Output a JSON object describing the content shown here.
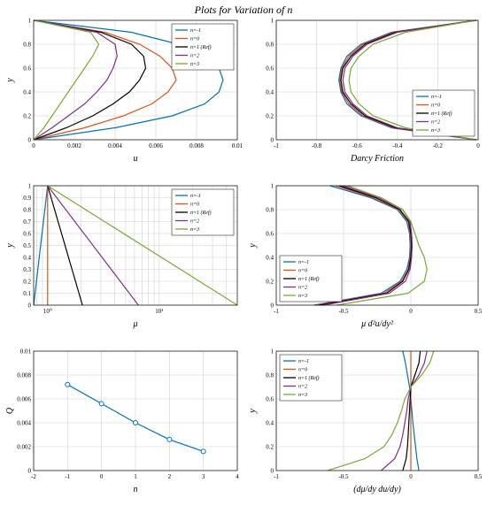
{
  "figure": {
    "title": "Plots for Variation of n"
  },
  "legend_entries": [
    "n=-1",
    "n=0",
    "n=1 (Ref)",
    "n=2",
    "n=3"
  ],
  "colors": [
    "#0072BD",
    "#D95319",
    "#000000",
    "#7E2F8E",
    "#77AC30"
  ],
  "chart_data": [
    {
      "id": "u",
      "type": "line",
      "xlabel": "u",
      "ylabel": "y",
      "xlim": [
        0,
        0.01
      ],
      "ylim": [
        0,
        1
      ],
      "xticks": [
        0,
        0.002,
        0.004,
        0.006,
        0.008,
        0.01
      ],
      "xticklabels": [
        "0",
        "0.002",
        "0.004",
        "0.006",
        "0.008",
        "0.01"
      ],
      "yticks": [
        0,
        0.2,
        0.4,
        0.6,
        0.8,
        1
      ],
      "yticklabels": [
        "0",
        "0.2",
        "0.4",
        "0.6",
        "0.8",
        "1"
      ],
      "grid": true,
      "legend": "top-right",
      "series": [
        {
          "name": "n=-1",
          "x": [
            0,
            0.004,
            0.0068,
            0.0084,
            0.0091,
            0.0093,
            0.0091,
            0.0084,
            0.0071,
            0.0048,
            0
          ],
          "y": [
            0,
            0.1,
            0.2,
            0.3,
            0.4,
            0.5,
            0.6,
            0.7,
            0.8,
            0.9,
            1
          ]
        },
        {
          "name": "n=0",
          "x": [
            0,
            0.0025,
            0.0044,
            0.0058,
            0.0066,
            0.007,
            0.0068,
            0.0062,
            0.0052,
            0.0035,
            0
          ],
          "y": [
            0,
            0.1,
            0.2,
            0.3,
            0.4,
            0.5,
            0.6,
            0.7,
            0.8,
            0.9,
            1
          ]
        },
        {
          "name": "n=1 (Ref)",
          "x": [
            0,
            0.0016,
            0.0029,
            0.0039,
            0.0047,
            0.0052,
            0.0055,
            0.0054,
            0.0048,
            0.0033,
            0
          ],
          "y": [
            0,
            0.1,
            0.2,
            0.3,
            0.4,
            0.5,
            0.6,
            0.7,
            0.8,
            0.9,
            1
          ]
        },
        {
          "name": "n=2",
          "x": [
            0,
            0.0009,
            0.0017,
            0.0025,
            0.0031,
            0.0036,
            0.0039,
            0.0041,
            0.004,
            0.0031,
            0
          ],
          "y": [
            0,
            0.1,
            0.2,
            0.3,
            0.4,
            0.5,
            0.6,
            0.7,
            0.8,
            0.9,
            1
          ]
        },
        {
          "name": "n=3",
          "x": [
            0,
            0.0005,
            0.0009,
            0.0013,
            0.0017,
            0.0021,
            0.0025,
            0.0029,
            0.0032,
            0.0028,
            0
          ],
          "y": [
            0,
            0.1,
            0.2,
            0.3,
            0.4,
            0.5,
            0.6,
            0.7,
            0.8,
            0.9,
            1
          ]
        }
      ]
    },
    {
      "id": "darcy",
      "type": "line",
      "xlabel": "Darcy Friction",
      "ylabel": "",
      "xlim": [
        -1,
        0
      ],
      "ylim": [
        0,
        1
      ],
      "xticks": [
        -1,
        -0.8,
        -0.6,
        -0.4,
        -0.2,
        0
      ],
      "xticklabels": [
        "-1",
        "-0.8",
        "-0.6",
        "-0.4",
        "-0.2",
        "0"
      ],
      "yticks": [
        0,
        0.2,
        0.4,
        0.6,
        0.8,
        1
      ],
      "yticklabels": [
        "0",
        "0.2",
        "0.4",
        "0.6",
        "0.8",
        "1"
      ],
      "grid": true,
      "legend": "bottom-right",
      "series": [
        {
          "name": "n=-1",
          "x": [
            -0.01,
            -0.43,
            -0.58,
            -0.65,
            -0.68,
            -0.69,
            -0.68,
            -0.65,
            -0.58,
            -0.43,
            -0.01
          ],
          "y": [
            0,
            0.1,
            0.2,
            0.3,
            0.4,
            0.5,
            0.6,
            0.7,
            0.8,
            0.9,
            1
          ]
        },
        {
          "name": "n=0",
          "x": [
            -0.01,
            -0.42,
            -0.57,
            -0.64,
            -0.675,
            -0.685,
            -0.675,
            -0.64,
            -0.57,
            -0.42,
            -0.01
          ],
          "y": [
            0,
            0.1,
            0.2,
            0.3,
            0.4,
            0.5,
            0.6,
            0.7,
            0.8,
            0.9,
            1
          ]
        },
        {
          "name": "n=1 (Ref)",
          "x": [
            -0.01,
            -0.41,
            -0.56,
            -0.63,
            -0.67,
            -0.68,
            -0.67,
            -0.63,
            -0.56,
            -0.41,
            -0.01
          ],
          "y": [
            0,
            0.1,
            0.2,
            0.3,
            0.4,
            0.5,
            0.6,
            0.7,
            0.8,
            0.9,
            1
          ]
        },
        {
          "name": "n=2",
          "x": [
            -0.01,
            -0.4,
            -0.55,
            -0.62,
            -0.66,
            -0.67,
            -0.66,
            -0.62,
            -0.55,
            -0.4,
            -0.01
          ],
          "y": [
            0,
            0.1,
            0.2,
            0.3,
            0.4,
            0.5,
            0.6,
            0.7,
            0.8,
            0.9,
            1
          ]
        },
        {
          "name": "n=3",
          "x": [
            -0.01,
            -0.36,
            -0.52,
            -0.59,
            -0.63,
            -0.64,
            -0.63,
            -0.59,
            -0.52,
            -0.36,
            -0.01
          ],
          "y": [
            0,
            0.1,
            0.2,
            0.3,
            0.4,
            0.5,
            0.6,
            0.7,
            0.8,
            0.9,
            1
          ]
        }
      ]
    },
    {
      "id": "mu",
      "type": "line",
      "xlabel": "μ",
      "ylabel": "y",
      "xscale": "log",
      "xlim": [
        0.75,
        50
      ],
      "ylim": [
        0,
        1
      ],
      "xticks": [
        1,
        10
      ],
      "xticklabels": [
        "10⁰",
        "10¹"
      ],
      "yticks": [
        0,
        0.1,
        0.2,
        0.3,
        0.4,
        0.5,
        0.6,
        0.7,
        0.8,
        0.9,
        1
      ],
      "yticklabels": [
        "0",
        "0.1",
        "0.2",
        "0.3",
        "0.4",
        "0.5",
        "0.6",
        "0.7",
        "0.8",
        "0.9",
        "1"
      ],
      "grid": true,
      "legend": "top-right",
      "series": [
        {
          "name": "n=-1",
          "x": [
            1.0,
            0.7
          ],
          "y": [
            1,
            0
          ]
        },
        {
          "name": "n=0",
          "x": [
            1.0,
            1.0
          ],
          "y": [
            1,
            0
          ]
        },
        {
          "name": "n=1 (Ref)",
          "x": [
            1.0,
            2.05
          ],
          "y": [
            1,
            0
          ]
        },
        {
          "name": "n=2",
          "x": [
            1.0,
            6.5
          ],
          "y": [
            1,
            0
          ]
        },
        {
          "name": "n=3",
          "x": [
            1.0,
            50
          ],
          "y": [
            1,
            0
          ]
        }
      ]
    },
    {
      "id": "stress",
      "type": "line",
      "xlabel": "μ d²u/dy²",
      "ylabel": "y",
      "xlim": [
        -1,
        0.5
      ],
      "ylim": [
        0,
        1
      ],
      "xticks": [
        -1,
        -0.5,
        0,
        0.5
      ],
      "xticklabels": [
        "-1",
        "-0.5",
        "0",
        "0.5"
      ],
      "yticks": [
        0,
        0.2,
        0.4,
        0.6,
        0.8,
        1
      ],
      "yticklabels": [
        "0",
        "0.2",
        "0.4",
        "0.6",
        "0.8",
        "1"
      ],
      "grid": true,
      "legend": "bottom-left",
      "series": [
        {
          "name": "n=-1",
          "x": [
            -0.72,
            -0.22,
            -0.08,
            -0.03,
            -0.01,
            -0.005,
            -0.01,
            -0.03,
            -0.1,
            -0.3,
            -0.6
          ],
          "y": [
            0,
            0.1,
            0.2,
            0.3,
            0.4,
            0.5,
            0.6,
            0.7,
            0.8,
            0.9,
            1
          ]
        },
        {
          "name": "n=0",
          "x": [
            -0.7,
            -0.2,
            -0.07,
            -0.02,
            -0.005,
            0,
            -0.005,
            -0.02,
            -0.09,
            -0.28,
            -0.56
          ],
          "y": [
            0,
            0.1,
            0.2,
            0.3,
            0.4,
            0.5,
            0.6,
            0.7,
            0.8,
            0.9,
            1
          ]
        },
        {
          "name": "n=1 (Ref)",
          "x": [
            -0.68,
            -0.18,
            -0.06,
            -0.015,
            0,
            0.005,
            0,
            -0.015,
            -0.08,
            -0.26,
            -0.53
          ],
          "y": [
            0,
            0.1,
            0.2,
            0.3,
            0.4,
            0.5,
            0.6,
            0.7,
            0.8,
            0.9,
            1
          ]
        },
        {
          "name": "n=2",
          "x": [
            -0.65,
            -0.16,
            -0.04,
            -0.005,
            0.005,
            0.01,
            0.005,
            -0.005,
            -0.06,
            -0.24,
            -0.5
          ],
          "y": [
            0,
            0.1,
            0.2,
            0.3,
            0.4,
            0.5,
            0.6,
            0.7,
            0.8,
            0.9,
            1
          ]
        },
        {
          "name": "n=3",
          "x": [
            -0.55,
            -0.02,
            0.1,
            0.12,
            0.1,
            0.06,
            0.03,
            0,
            -0.06,
            -0.22,
            -0.47
          ],
          "y": [
            0,
            0.1,
            0.2,
            0.3,
            0.4,
            0.5,
            0.6,
            0.7,
            0.8,
            0.9,
            1
          ]
        }
      ]
    },
    {
      "id": "Q",
      "type": "line",
      "xlabel": "n",
      "ylabel": "Q",
      "xlim": [
        -2,
        4
      ],
      "ylim": [
        0,
        0.01
      ],
      "xticks": [
        -2,
        -1,
        0,
        1,
        2,
        3,
        4
      ],
      "xticklabels": [
        "-2",
        "-1",
        "0",
        "1",
        "2",
        "3",
        "4"
      ],
      "yticks": [
        0,
        0.002,
        0.004,
        0.006,
        0.008,
        0.01
      ],
      "yticklabels": [
        "0",
        "0.002",
        "0.004",
        "0.006",
        "0.008",
        "0.01"
      ],
      "grid": true,
      "series": [
        {
          "name": "",
          "x": [
            -1,
            0,
            1,
            2,
            3
          ],
          "y": [
            0.0072,
            0.0056,
            0.004,
            0.0026,
            0.0016
          ],
          "markers": true,
          "color": "#0072BD"
        }
      ]
    },
    {
      "id": "dmu",
      "type": "line",
      "xlabel": "(dμ/dy du/dy)",
      "ylabel": "y",
      "xlim": [
        -1,
        0.5
      ],
      "ylim": [
        0,
        1
      ],
      "xticks": [
        -1,
        -0.5,
        0,
        0.5
      ],
      "xticklabels": [
        "-1",
        "-0.5",
        "0",
        "0.5"
      ],
      "yticks": [
        0,
        0.2,
        0.4,
        0.6,
        0.8,
        1
      ],
      "yticklabels": [
        "0",
        "0.2",
        "0.4",
        "0.6",
        "0.8",
        "1"
      ],
      "grid": true,
      "legend": "top-left",
      "series": [
        {
          "name": "n=-1",
          "x": [
            0.06,
            0.045,
            0.035,
            0.025,
            0.015,
            0.008,
            0,
            -0.01,
            -0.025,
            -0.04,
            -0.06
          ],
          "y": [
            0,
            0.1,
            0.2,
            0.3,
            0.4,
            0.5,
            0.6,
            0.7,
            0.8,
            0.9,
            1
          ]
        },
        {
          "name": "n=0",
          "x": [
            0,
            0,
            0,
            0,
            0,
            0,
            0,
            0,
            0,
            0,
            0
          ],
          "y": [
            0,
            0.1,
            0.2,
            0.3,
            0.4,
            0.5,
            0.6,
            0.7,
            0.8,
            0.9,
            1
          ]
        },
        {
          "name": "n=1 (Ref)",
          "x": [
            -0.06,
            -0.035,
            -0.025,
            -0.02,
            -0.015,
            -0.01,
            -0.005,
            0,
            0.03,
            0.06,
            0.07
          ],
          "y": [
            0,
            0.1,
            0.2,
            0.3,
            0.4,
            0.5,
            0.6,
            0.7,
            0.8,
            0.9,
            1
          ]
        },
        {
          "name": "n=2",
          "x": [
            -0.22,
            -0.12,
            -0.08,
            -0.06,
            -0.045,
            -0.03,
            -0.02,
            0,
            0.06,
            0.1,
            0.12
          ],
          "y": [
            0,
            0.1,
            0.2,
            0.3,
            0.4,
            0.5,
            0.6,
            0.7,
            0.8,
            0.9,
            1
          ]
        },
        {
          "name": "n=3",
          "x": [
            -0.62,
            -0.34,
            -0.2,
            -0.14,
            -0.1,
            -0.07,
            -0.045,
            0,
            0.08,
            0.14,
            0.17
          ],
          "y": [
            0,
            0.1,
            0.2,
            0.3,
            0.4,
            0.5,
            0.6,
            0.7,
            0.8,
            0.9,
            1
          ]
        }
      ]
    }
  ]
}
